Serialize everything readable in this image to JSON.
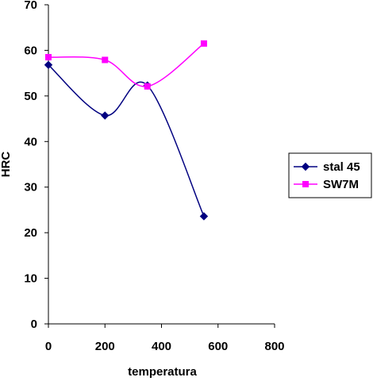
{
  "chart_data": {
    "type": "line",
    "xlabel": "temperatura",
    "ylabel": "HRC",
    "xlim": [
      0,
      800
    ],
    "ylim": [
      0,
      70
    ],
    "x_ticks": [
      0,
      200,
      400,
      600,
      800
    ],
    "y_ticks": [
      0,
      10,
      20,
      30,
      40,
      50,
      60,
      70
    ],
    "x_tick_labels": [
      "0",
      "200",
      "400",
      "600",
      "800"
    ],
    "y_tick_labels": [
      "0",
      "10",
      "20",
      "30",
      "40",
      "50",
      "60",
      "70"
    ],
    "grid": false,
    "smooth": true,
    "legend_position": "right",
    "series": [
      {
        "name": "stal 45",
        "color": "#000080",
        "marker": "diamond",
        "x": [
          0,
          200,
          350,
          550
        ],
        "y": [
          56.8,
          45.7,
          52.3,
          23.6
        ]
      },
      {
        "name": "SW7M",
        "color": "#FF00FF",
        "marker": "square",
        "x": [
          0,
          200,
          350,
          550
        ],
        "y": [
          58.5,
          57.9,
          52.1,
          61.5
        ]
      }
    ]
  }
}
